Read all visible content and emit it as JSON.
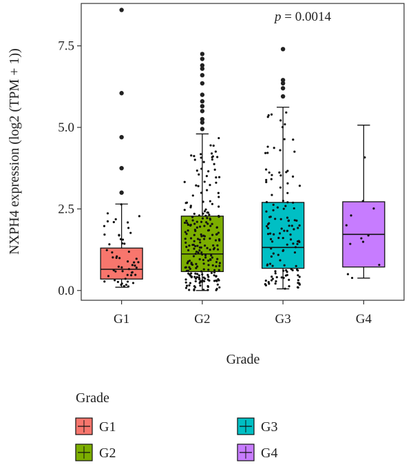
{
  "chart_data": {
    "type": "box",
    "title": "",
    "annotation": {
      "label_italic": "p",
      "label_rest": " = 0.0014"
    },
    "xlabel": "Grade",
    "ylabel": "NXPH4 expression (log2 (TPM + 1))",
    "ylim": [
      -0.3,
      8.8
    ],
    "yticks": [
      0.0,
      2.5,
      5.0,
      7.5
    ],
    "ytick_labels": [
      "0.0",
      "2.5",
      "5.0",
      "7.5"
    ],
    "categories": [
      "G1",
      "G2",
      "G3",
      "G4"
    ],
    "grid": false,
    "legend": {
      "title": "Grade",
      "position": "bottom",
      "items": [
        "G1",
        "G2",
        "G3",
        "G4"
      ]
    },
    "series": [
      {
        "name": "G1",
        "color": "#F8766D",
        "box": {
          "whisker_low": 0.1,
          "q1": 0.35,
          "median": 0.65,
          "q3": 1.3,
          "whisker_high": 2.65
        },
        "outliers": [
          3.0,
          3.75,
          4.7,
          6.05,
          8.6
        ],
        "jitter_count": 55
      },
      {
        "name": "G2",
        "color": "#7CAE00",
        "box": {
          "whisker_low": 0.0,
          "q1": 0.58,
          "median": 1.12,
          "q3": 2.28,
          "whisker_high": 4.8
        },
        "outliers": [
          4.95,
          5.15,
          5.25,
          5.5,
          5.65,
          5.8,
          6.0,
          6.35,
          6.6,
          6.8,
          6.9,
          7.1,
          7.25
        ],
        "jitter_count": 230
      },
      {
        "name": "G3",
        "color": "#00BFC4",
        "box": {
          "whisker_low": 0.05,
          "q1": 0.68,
          "median": 1.32,
          "q3": 2.7,
          "whisker_high": 5.62
        },
        "outliers": [
          5.95,
          6.2,
          6.35,
          6.45,
          7.4
        ],
        "jitter_count": 130
      },
      {
        "name": "G4",
        "color": "#C77CFF",
        "box": {
          "whisker_low": 0.38,
          "q1": 0.72,
          "median": 1.72,
          "q3": 2.72,
          "whisker_high": 5.07
        },
        "outliers": [],
        "jitter_count": 12
      }
    ]
  }
}
